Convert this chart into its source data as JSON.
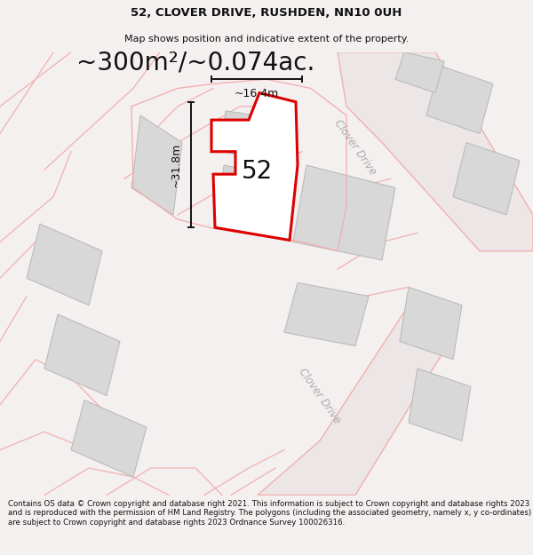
{
  "title_line1": "52, CLOVER DRIVE, RUSHDEN, NN10 0UH",
  "title_line2": "Map shows position and indicative extent of the property.",
  "area_text": "~300m²/~0.074ac.",
  "label_52": "52",
  "dim_width": "~16.4m",
  "dim_height": "~31.8m",
  "road_label_top": "Clover Drive",
  "road_label_bottom": "Clover Drive",
  "footer_text": "Contains OS data © Crown copyright and database right 2021. This information is subject to Crown copyright and database rights 2023 and is reproduced with the permission of HM Land Registry. The polygons (including the associated geometry, namely x, y co-ordinates) are subject to Crown copyright and database rights 2023 Ordnance Survey 100026316.",
  "bg_color": "#f5f0f0",
  "map_bg": "#f5f0f0",
  "property_fill": "white",
  "property_stroke": "#dd0000",
  "neighbor_fill": "#d8d8d8",
  "neighbor_stroke": "#bbbbbb",
  "road_line_color": "#f0b0b0",
  "road_fill_color": "#e8e0e0",
  "dim_color": "#111111",
  "text_color": "#111111",
  "road_label_color": "#aaaaaa",
  "title_fontsize": 9.5,
  "subtitle_fontsize": 8,
  "area_fontsize": 20,
  "label_fontsize": 20,
  "footer_fontsize": 6.2,
  "dim_fontsize": 9
}
